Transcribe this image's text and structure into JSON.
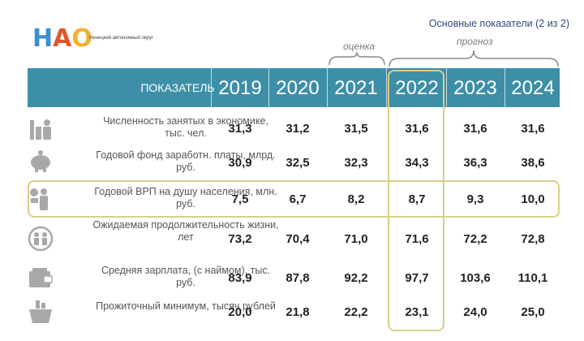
{
  "logo": {
    "letters": [
      "Н",
      "А",
      "О"
    ],
    "subtitle": "Ненецкий автономный округ"
  },
  "header": {
    "title": "Основные показатели (2 из 2)"
  },
  "braces": {
    "estimate": "оценка",
    "forecast": "прогноз"
  },
  "table": {
    "indicator_header": "ПОКАЗАТЕЛЬ",
    "years": [
      "2019",
      "2020",
      "2021",
      "2022",
      "2023",
      "2024"
    ],
    "rows": [
      {
        "icon": "workers-icon",
        "label": "Численность занятых в экономике, тыс. чел.",
        "values": [
          "31,3",
          "31,2",
          "31,5",
          "31,6",
          "31,6",
          "31,6"
        ]
      },
      {
        "icon": "piggy-bank-icon",
        "label": "Годовой фонд заработн. платы, млрд. руб.",
        "values": [
          "30,9",
          "32,5",
          "32,3",
          "34,3",
          "36,3",
          "38,6"
        ]
      },
      {
        "icon": "person-money-icon",
        "label": "Годовой ВРП на душу населения, млн. руб.",
        "values": [
          "7,5",
          "6,7",
          "8,2",
          "8,7",
          "9,3",
          "10,0"
        ]
      },
      {
        "icon": "family-icon",
        "label": "Ожидаемая продолжительность жизни, лет",
        "values": [
          "73,2",
          "70,4",
          "71,0",
          "71,6",
          "72,2",
          "72,8"
        ]
      },
      {
        "icon": "wallet-icon",
        "label": "Средняя зарплата, (с наймом), тыс. руб.",
        "values": [
          "83,9",
          "87,8",
          "92,2",
          "97,7",
          "103,6",
          "110,1"
        ]
      },
      {
        "icon": "basket-icon",
        "label": "Прожиточный минимум, тысяч рублей",
        "values": [
          "20,0",
          "21,8",
          "22,2",
          "23,1",
          "24,0",
          "25,0"
        ]
      }
    ]
  },
  "colors": {
    "header_bg": "#3d8fa8",
    "highlight_border": "#d9cf86",
    "title_color": "#2f4b7c"
  }
}
